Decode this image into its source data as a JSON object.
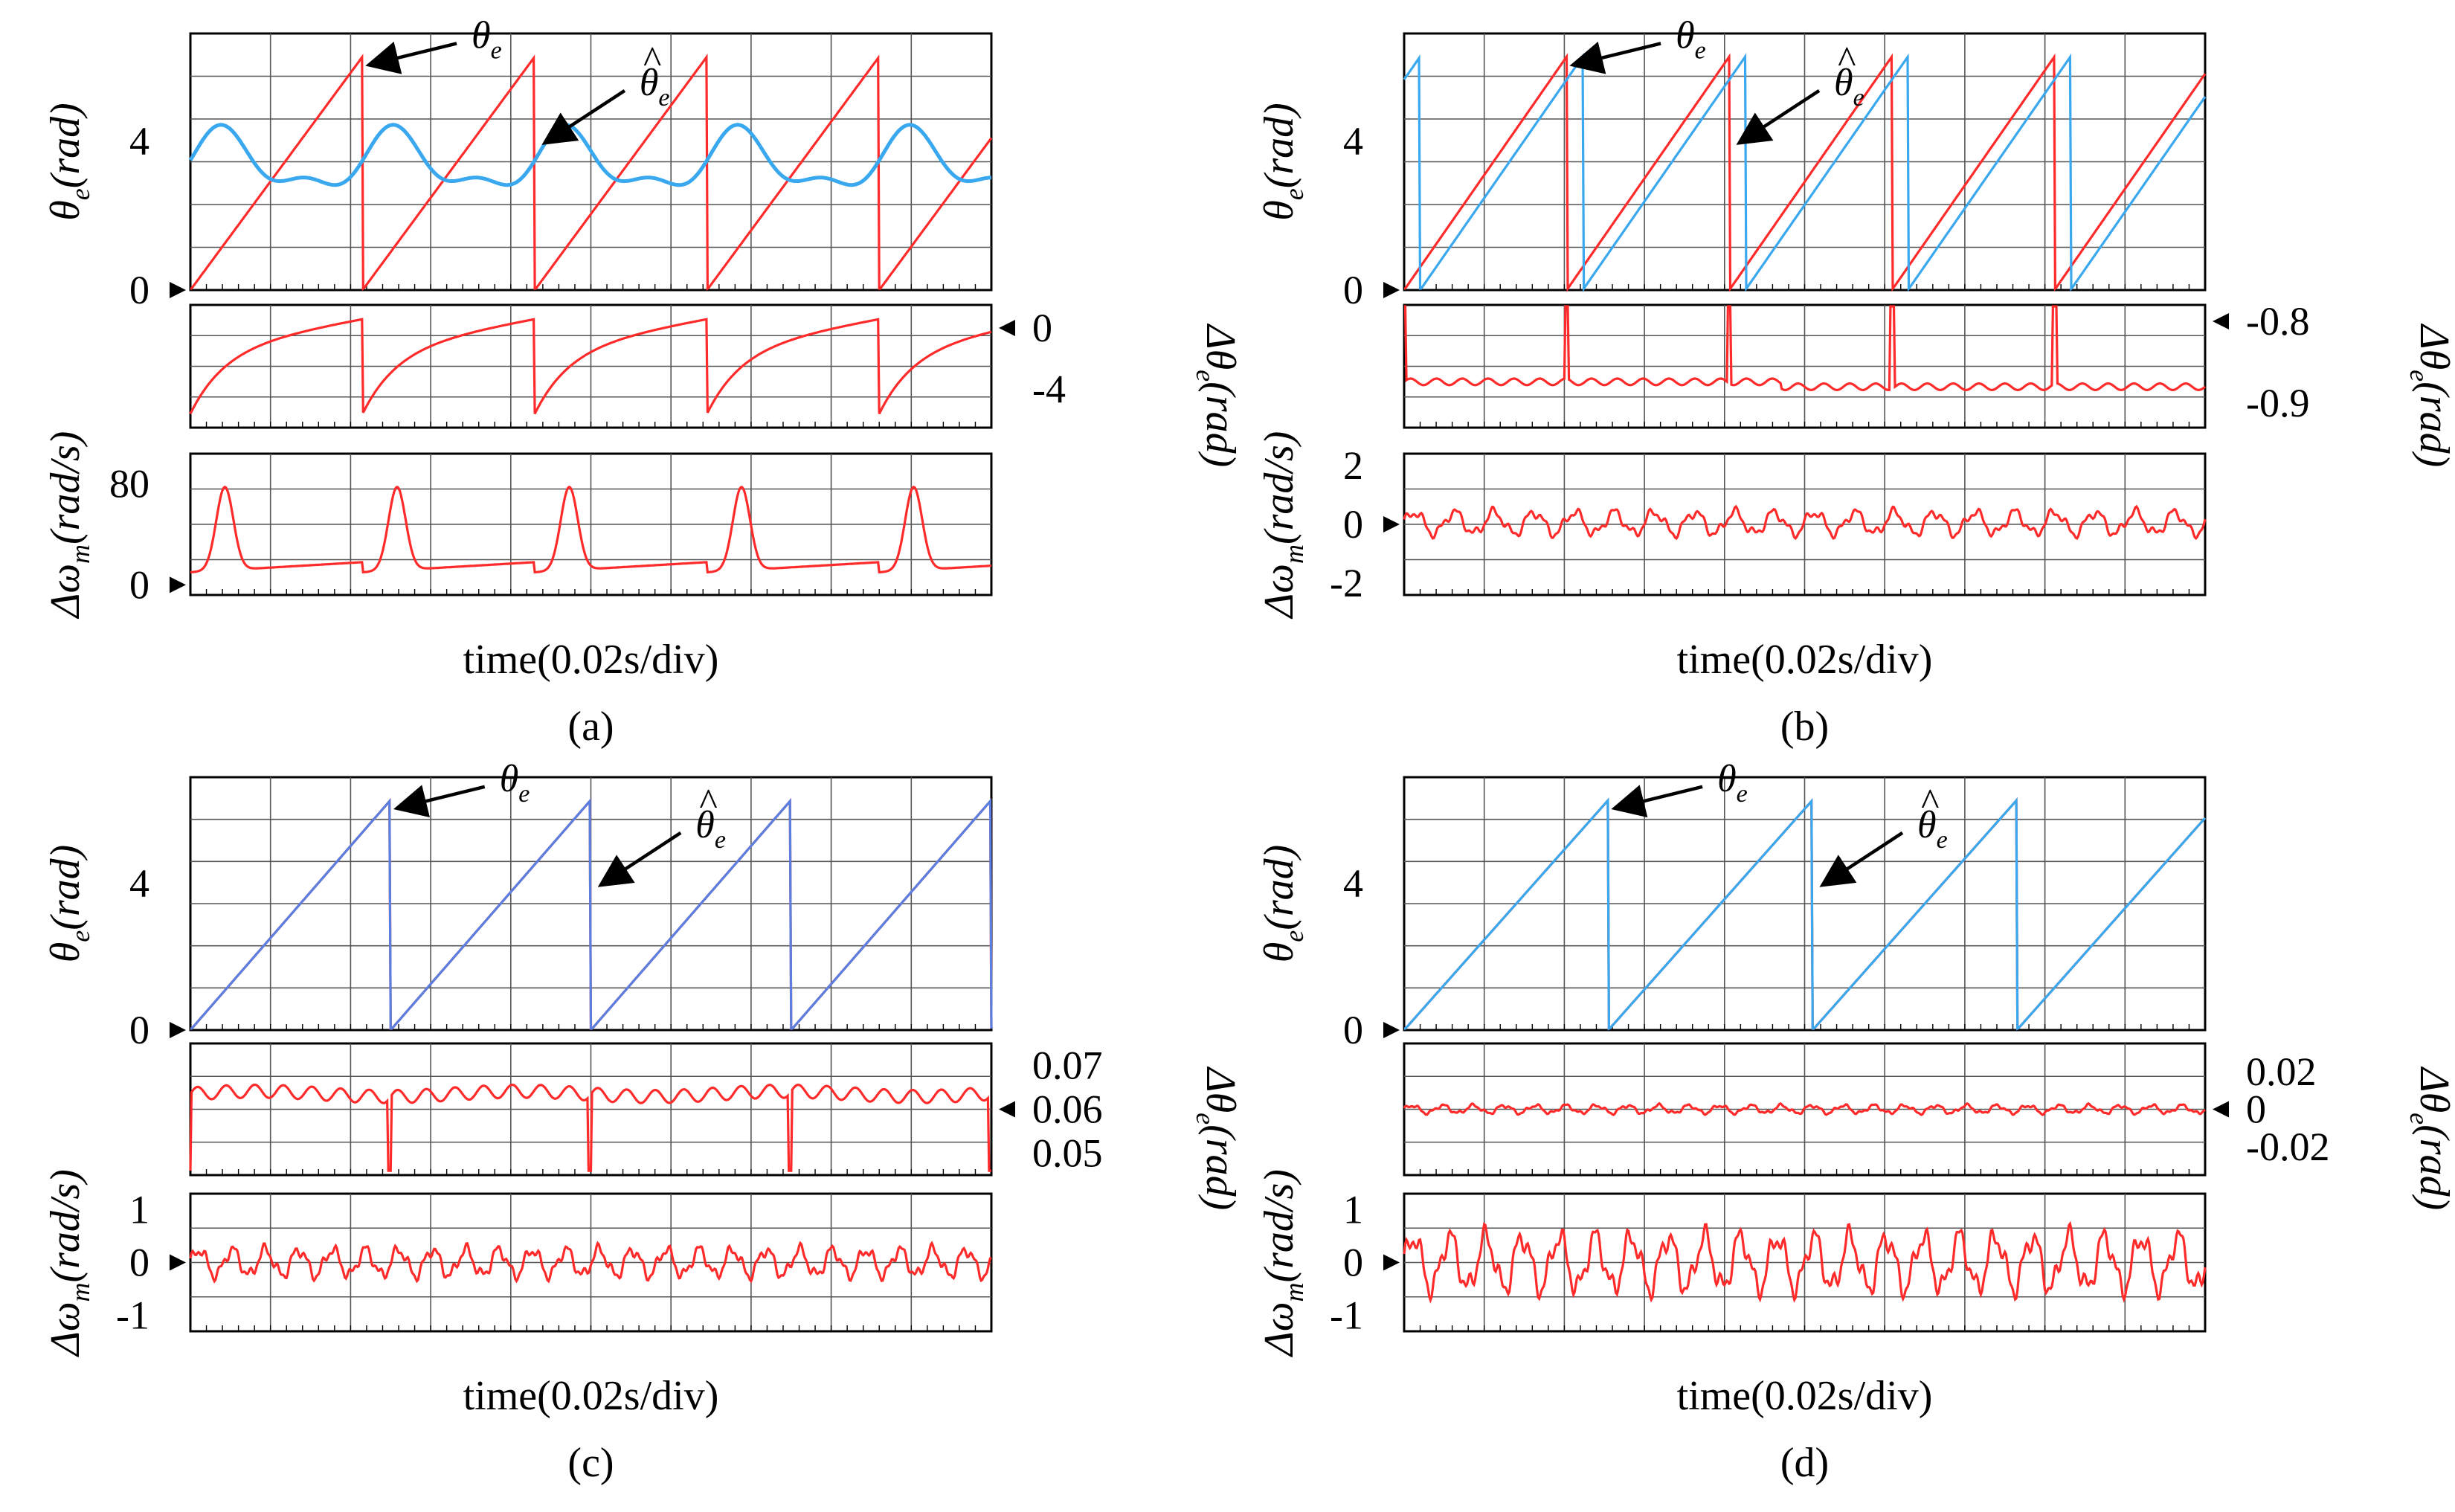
{
  "figure_title": "",
  "chart_data": [
    {
      "id": "a",
      "type": "line",
      "label": "(a)",
      "xlabel": "time(0.02s/div)",
      "x_divisions": 10,
      "panels": [
        {
          "key": "theta",
          "ylabel_main": "θ",
          "ylabel_sub": "e",
          "ylabel_unit": "(rad)",
          "ylim": [
            0,
            6.9
          ],
          "yticks": [
            "4",
            "0"
          ],
          "ytick_values": [
            4,
            0
          ],
          "zero_marker": "left",
          "series": [
            {
              "name": "θ_e (actual)",
              "color": "#ff2b2b",
              "kind": "saw",
              "period": 2.15,
              "phase": 0.0,
              "amplitude": 6.28
            },
            {
              "name": "θ̂_e (estimated)",
              "color": "#39a8ef",
              "kind": "smooth_wave",
              "period": 2.15,
              "phase": 0.0,
              "mean": 3.4,
              "amplitude": 0.95
            }
          ],
          "annotations": [
            {
              "text": "θ",
              "sub": "e",
              "hat": false
            },
            {
              "text": "θ",
              "sub": "e",
              "hat": true
            }
          ]
        },
        {
          "key": "dtheta",
          "ylabel_right": "Δθ_e(rad)",
          "ylim": [
            -6.5,
            1.5
          ],
          "yticks": [
            "0",
            "-4"
          ],
          "ytick_values": [
            0,
            -4
          ],
          "zero_marker": "right",
          "series": [
            {
              "name": "Δθ_e",
              "color": "#ff2b2b",
              "kind": "err_a",
              "period": 2.15,
              "phase": 0.0
            }
          ]
        },
        {
          "key": "domega",
          "ylabel_main": "Δω",
          "ylabel_sub": "m",
          "ylabel_unit": "(rad/s)",
          "ylim": [
            -8,
            104
          ],
          "yticks": [
            "80",
            "0"
          ],
          "ytick_values": [
            80,
            0
          ],
          "zero_marker": "left",
          "series": [
            {
              "name": "Δω_m",
              "color": "#ff2b2b",
              "kind": "peaks",
              "period": 2.15,
              "phase": 0.0,
              "base": 14,
              "peak": 80
            }
          ]
        }
      ]
    },
    {
      "id": "b",
      "type": "line",
      "label": "(b)",
      "xlabel": "time(0.02s/div)",
      "x_divisions": 10,
      "panels": [
        {
          "key": "theta",
          "ylabel_main": "θ",
          "ylabel_sub": "e",
          "ylabel_unit": "(rad)",
          "ylim": [
            0,
            6.9
          ],
          "yticks": [
            "4",
            "0"
          ],
          "ytick_values": [
            4,
            0
          ],
          "zero_marker": "left",
          "series": [
            {
              "name": "θ_e (actual)",
              "color": "#ff2b2b",
              "kind": "saw",
              "period": 2.03,
              "phase": 0.0,
              "amplitude": 6.28
            },
            {
              "name": "θ̂_e (estimated)",
              "color": "#39a8ef",
              "kind": "saw",
              "period": 2.03,
              "phase": 0.2,
              "amplitude": 6.28
            }
          ],
          "annotations": [
            {
              "text": "θ",
              "sub": "e",
              "hat": false
            },
            {
              "text": "θ",
              "sub": "e",
              "hat": true
            }
          ]
        },
        {
          "key": "dtheta",
          "ylabel_right": "Δθ_e(rad)",
          "ylim": [
            -0.93,
            -0.78
          ],
          "yticks": [
            "-0.8",
            "-0.9"
          ],
          "ytick_values": [
            -0.8,
            -0.9
          ],
          "zero_marker": "right",
          "series": [
            {
              "name": "Δθ_e",
              "color": "#ff2b2b",
              "kind": "flat_spikes",
              "period": 2.03,
              "phase": 0.0,
              "mean": -0.874,
              "ripple": 0.004,
              "spike_to": -0.78
            }
          ]
        },
        {
          "key": "domega",
          "ylabel_main": "Δω",
          "ylabel_sub": "m",
          "ylabel_unit": "(rad/s)",
          "ylim": [
            -2.4,
            2.4
          ],
          "yticks": [
            "2",
            "0",
            "-2"
          ],
          "ytick_values": [
            2,
            0,
            -2
          ],
          "zero_marker": "left",
          "series": [
            {
              "name": "Δω_m",
              "color": "#ff2b2b",
              "kind": "ripple",
              "mean": 0.05,
              "amplitude": 0.45,
              "cycles": 20
            }
          ]
        }
      ]
    },
    {
      "id": "c",
      "type": "line",
      "label": "(c)",
      "xlabel": "time(0.02s/div)",
      "x_divisions": 10,
      "panels": [
        {
          "key": "theta",
          "ylabel_main": "θ",
          "ylabel_sub": "e",
          "ylabel_unit": "(rad)",
          "ylim": [
            0,
            6.9
          ],
          "yticks": [
            "4",
            "0"
          ],
          "ytick_values": [
            4,
            0
          ],
          "zero_marker": "left",
          "series": [
            {
              "name": "θ_e (actual)",
              "color": "#ff2b2b",
              "kind": "saw",
              "period": 2.5,
              "phase": 0.0,
              "amplitude": 6.28
            },
            {
              "name": "θ̂_e (estimated)",
              "color": "#5b7fe0",
              "kind": "saw",
              "period": 2.5,
              "phase": 0.0,
              "amplitude": 6.28
            }
          ],
          "annotations": [
            {
              "text": "θ",
              "sub": "e",
              "hat": false
            },
            {
              "text": "θ",
              "sub": "e",
              "hat": true
            }
          ]
        },
        {
          "key": "dtheta",
          "ylabel_right": "Δθ_e(rad)",
          "ylim": [
            0.045,
            0.075
          ],
          "yticks": [
            "0.07",
            "0.06",
            "0.05"
          ],
          "ytick_values": [
            0.07,
            0.06,
            0.05
          ],
          "zero_marker": "right",
          "series": [
            {
              "name": "Δθ_e",
              "color": "#ff2b2b",
              "kind": "ripple_spikes",
              "period": 2.5,
              "phase": 0.0,
              "mean": 0.0635,
              "amplitude": 0.0015,
              "cycles": 28,
              "spike_to": 0.046
            }
          ]
        },
        {
          "key": "domega",
          "ylabel_main": "Δω",
          "ylabel_sub": "m",
          "ylabel_unit": "(rad/s)",
          "ylim": [
            -1.3,
            1.3
          ],
          "yticks": [
            "1",
            "0",
            "-1"
          ],
          "ytick_values": [
            1,
            0,
            -1
          ],
          "zero_marker": "left",
          "series": [
            {
              "name": "Δω_m",
              "color": "#ff2b2b",
              "kind": "ripple",
              "mean": 0.0,
              "amplitude": 0.3,
              "cycles": 24
            }
          ]
        }
      ]
    },
    {
      "id": "d",
      "type": "line",
      "label": "(d)",
      "xlabel": "time(0.02s/div)",
      "x_divisions": 10,
      "panels": [
        {
          "key": "theta",
          "ylabel_main": "θ",
          "ylabel_sub": "e",
          "ylabel_unit": "(rad)",
          "ylim": [
            0,
            6.9
          ],
          "yticks": [
            "4",
            "0"
          ],
          "ytick_values": [
            4,
            0
          ],
          "zero_marker": "left",
          "series": [
            {
              "name": "θ_e (actual)",
              "color": "#ff2b2b",
              "kind": "saw",
              "period": 2.55,
              "phase": 0.0,
              "amplitude": 6.28
            },
            {
              "name": "θ̂_e (estimated)",
              "color": "#39a8ef",
              "kind": "saw",
              "period": 2.55,
              "phase": 0.0,
              "amplitude": 6.28
            }
          ],
          "annotations": [
            {
              "text": "θ",
              "sub": "e",
              "hat": false
            },
            {
              "text": "θ",
              "sub": "e",
              "hat": true
            }
          ]
        },
        {
          "key": "dtheta",
          "ylabel_right": "Δθ_e(rad)",
          "ylim": [
            -0.035,
            0.035
          ],
          "yticks": [
            "0.02",
            "0",
            "-0.02"
          ],
          "ytick_values": [
            0.02,
            0,
            -0.02
          ],
          "zero_marker": "right",
          "series": [
            {
              "name": "Δθ_e",
              "color": "#ff2b2b",
              "kind": "ripple",
              "mean": 0.0,
              "amplitude": 0.0025,
              "cycles": 26
            }
          ]
        },
        {
          "key": "domega",
          "ylabel_main": "Δω",
          "ylabel_sub": "m",
          "ylabel_unit": "(rad/s)",
          "ylim": [
            -1.3,
            1.3
          ],
          "yticks": [
            "1",
            "0",
            "-1"
          ],
          "ytick_values": [
            1,
            0,
            -1
          ],
          "zero_marker": "left",
          "series": [
            {
              "name": "Δω_m",
              "color": "#ff2b2b",
              "kind": "ripple",
              "mean": 0.0,
              "amplitude": 0.6,
              "cycles": 22
            }
          ]
        }
      ]
    }
  ]
}
